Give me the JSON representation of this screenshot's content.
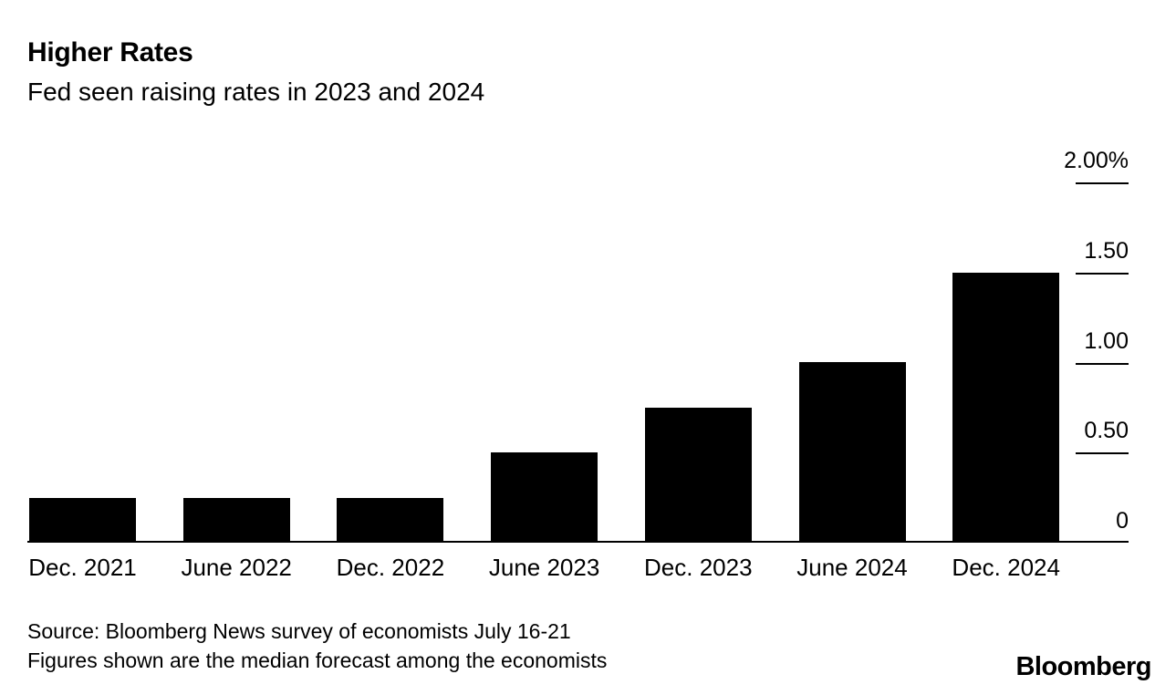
{
  "header": {
    "title": "Higher Rates",
    "subtitle": "Fed seen raising rates in 2023 and 2024"
  },
  "chart_data": {
    "type": "bar",
    "title": "Higher Rates",
    "subtitle": "Fed seen raising rates in 2023 and 2024",
    "categories": [
      "Dec. 2021",
      "June 2022",
      "Dec. 2022",
      "June 2023",
      "Dec. 2023",
      "June 2024",
      "Dec. 2024"
    ],
    "values": [
      0.25,
      0.25,
      0.25,
      0.5,
      0.75,
      1.0,
      1.5
    ],
    "unit": "percent",
    "bar_color": "#000000",
    "xlabel": "",
    "ylabel": "",
    "ylim": [
      0,
      2.0
    ],
    "y_ticks": [
      {
        "label": "2.00%",
        "value": 2.0
      },
      {
        "label": "1.50",
        "value": 1.5
      },
      {
        "label": "1.00",
        "value": 1.0
      },
      {
        "label": "0.50",
        "value": 0.5
      },
      {
        "label": "0",
        "value": 0
      }
    ],
    "grid": "off",
    "legend": "none",
    "axis_position": "right"
  },
  "footer": {
    "source_line1": "Source: Bloomberg News survey of economists July 16-21",
    "source_line2": "Figures shown are the median forecast among the economists",
    "logo": "Bloomberg"
  }
}
